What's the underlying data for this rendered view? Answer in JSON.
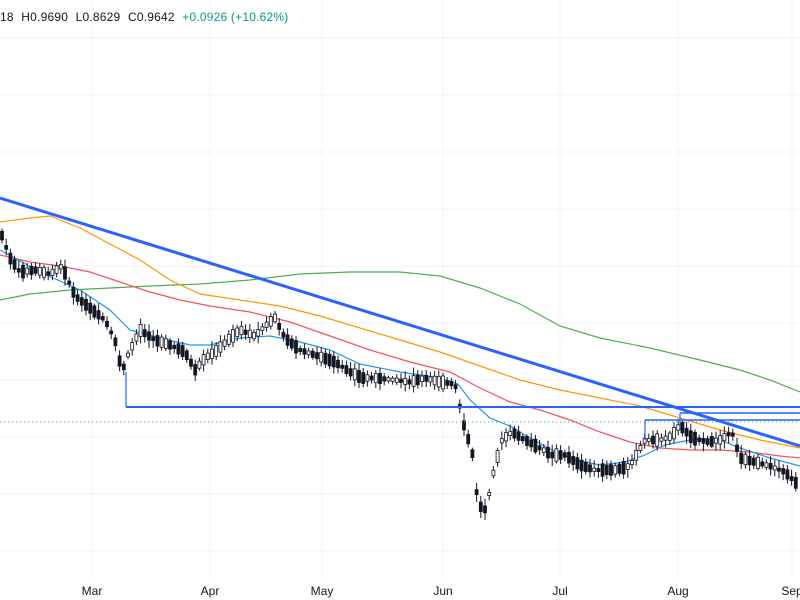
{
  "header": {
    "open_fragment": "18",
    "high": "H0.9690",
    "low": "L0.8629",
    "close": "C0.9642",
    "change": "+0.0926 (+10.62%)"
  },
  "colors": {
    "background": "#ffffff",
    "grid": "#f0f3fa",
    "candle_up": "#089981",
    "candle_down": "#f23645",
    "candle_body_mono": "#131722",
    "trendline": "#2962ff",
    "ma_fast": "#2196f3",
    "ma_mid": "#f7525f",
    "ma_slow": "#ff9800",
    "ma_long": "#4caf50",
    "dotted_level": "#26a69a"
  },
  "chart_data": {
    "type": "candlestick",
    "x_labels": [
      "Mar",
      "Apr",
      "May",
      "Jun",
      "Jul",
      "Aug",
      "Sep"
    ],
    "grid": true,
    "series": [
      {
        "name": "",
        "kind": "trendline",
        "points": [
          [
            "start",
            "high"
          ],
          [
            "Sep",
            "mid"
          ]
        ]
      },
      {
        "name": "",
        "kind": "horizontal_support"
      },
      {
        "name": "",
        "kind": "moving_average_fast"
      },
      {
        "name": "",
        "kind": "moving_average_mid"
      },
      {
        "name": "",
        "kind": "moving_average_slow"
      },
      {
        "name": "",
        "kind": "moving_average_long"
      }
    ]
  }
}
